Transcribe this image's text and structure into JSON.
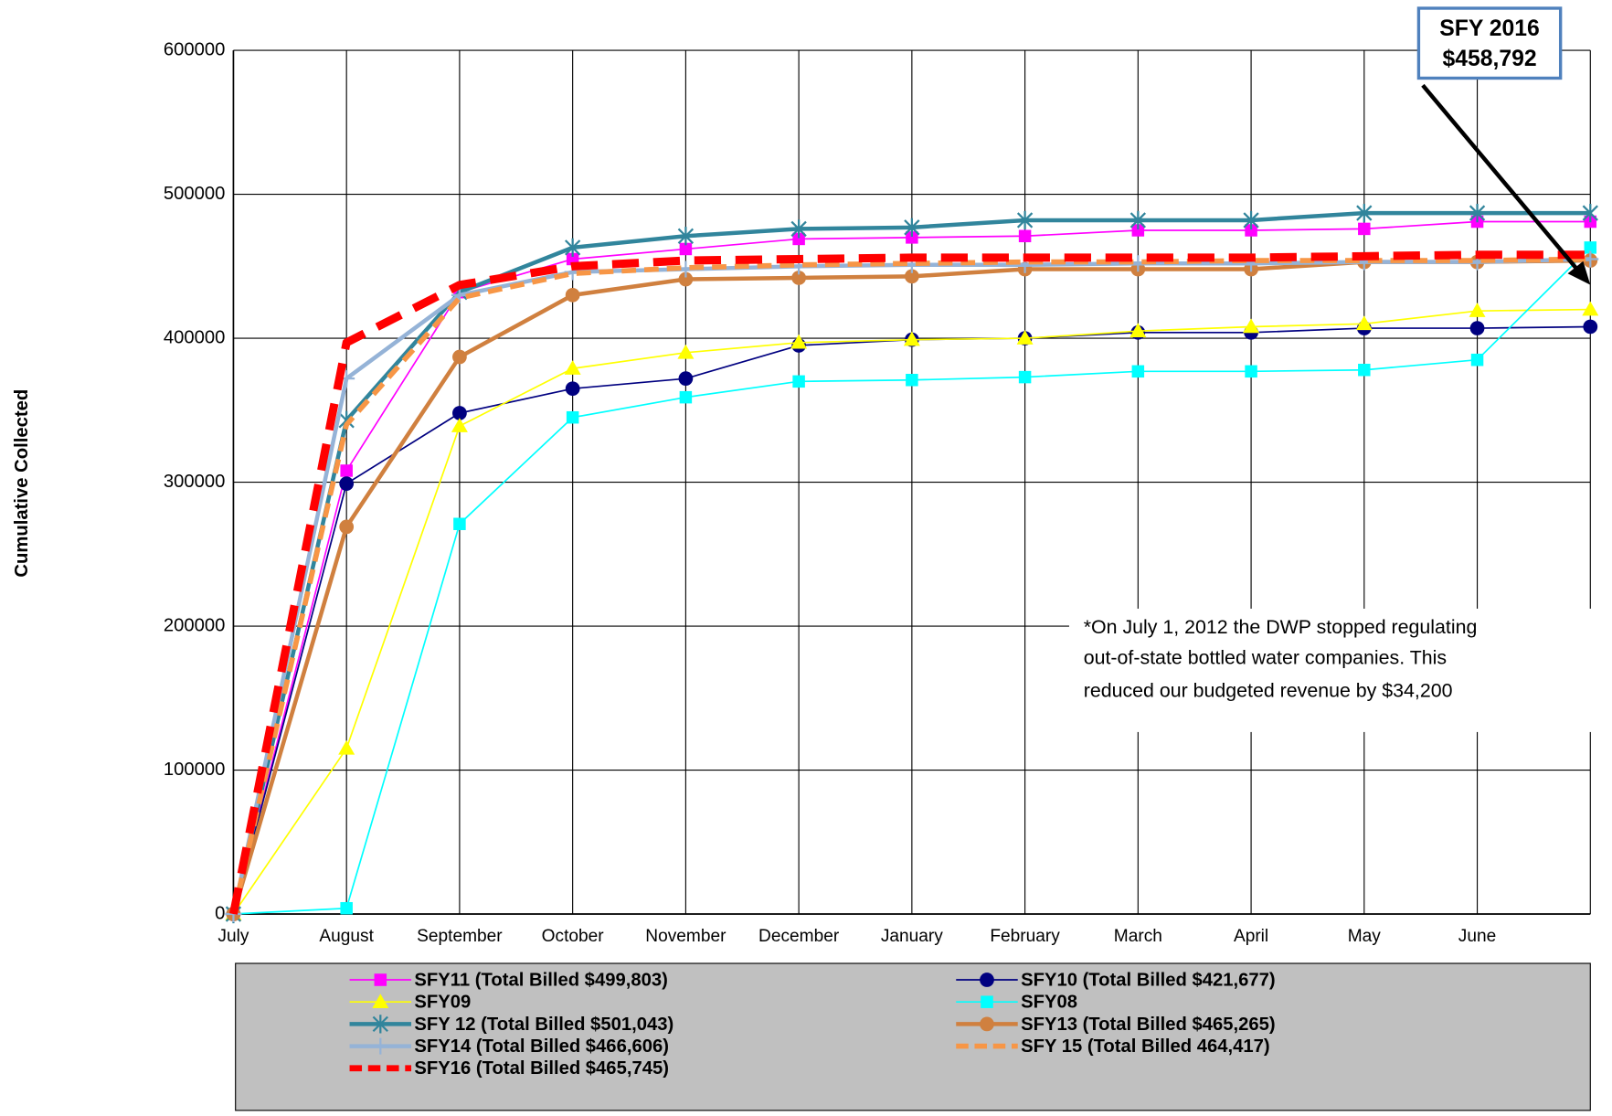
{
  "chart_data": {
    "type": "line",
    "y_label": "Cumulative Collected",
    "categories": [
      "July",
      "August",
      "September",
      "October",
      "November",
      "December",
      "January",
      "February",
      "March",
      "April",
      "May",
      "June",
      null
    ],
    "ylim": [
      0,
      600000
    ],
    "yticks": [
      0,
      100000,
      200000,
      300000,
      400000,
      500000,
      600000
    ],
    "grid": true,
    "annotation": [
      "SFY 2016",
      "$458,792"
    ],
    "note": [
      "*On July 1, 2012  the DWP stopped regulating",
      "out-of-state bottled water companies.  This",
      "reduced our budgeted revenue by $34,200"
    ],
    "series": [
      {
        "name": "SFY11 (Total Billed $499,803)",
        "color": "#ff00ff",
        "marker": "square",
        "width": 1.5,
        "dash": "",
        "values": [
          0,
          308000,
          432000,
          455000,
          462000,
          469000,
          470000,
          471000,
          475000,
          475000,
          476000,
          481000,
          481000
        ]
      },
      {
        "name": "SFY10 (Total Billed $421,677)",
        "color": "#000080",
        "marker": "circle",
        "width": 1.5,
        "dash": "",
        "values": [
          0,
          299000,
          348000,
          365000,
          372000,
          395000,
          399000,
          400000,
          404000,
          404000,
          407000,
          407000,
          408000
        ]
      },
      {
        "name": "SFY09",
        "color": "#ffff00",
        "marker": "triangle",
        "width": 1.5,
        "dash": "",
        "values": [
          0,
          115000,
          339000,
          379000,
          390000,
          397000,
          399000,
          400000,
          405000,
          408000,
          410000,
          419000,
          420000
        ]
      },
      {
        "name": "SFY08",
        "color": "#00ffff",
        "marker": "square",
        "width": 1.5,
        "dash": "",
        "values": [
          0,
          4000,
          271000,
          345000,
          359000,
          370000,
          371000,
          373000,
          377000,
          377000,
          378000,
          385000,
          463000
        ]
      },
      {
        "name": "SFY 12 (Total Billed $501,043)",
        "color": "#31859c",
        "marker": "star",
        "width": 4,
        "dash": "",
        "values": [
          0,
          343000,
          432000,
          463000,
          471000,
          476000,
          477000,
          482000,
          482000,
          482000,
          487000,
          487000,
          487000
        ]
      },
      {
        "name": "SFY13 (Total Billed $465,265)",
        "color": "#d0803f",
        "marker": "circle",
        "width": 4,
        "dash": "",
        "values": [
          0,
          269000,
          387000,
          430000,
          441000,
          442000,
          443000,
          448000,
          448000,
          448000,
          453000,
          453000,
          454000
        ]
      },
      {
        "name": "SFY14 (Total Billed $466,606)",
        "color": "#95b3d7",
        "marker": "plus",
        "width": 4,
        "dash": "",
        "values": [
          0,
          372000,
          430000,
          446000,
          448000,
          450000,
          451000,
          451000,
          452000,
          452000,
          453000,
          453000,
          455000
        ]
      },
      {
        "name": "SFY 15 (Total Billed 464,417)",
        "color": "#f79646",
        "marker": "none",
        "width": 5,
        "dash": "14 8",
        "values": [
          0,
          340000,
          428000,
          445000,
          449000,
          451000,
          452000,
          453000,
          453000,
          454000,
          454000,
          454000,
          455000
        ]
      },
      {
        "name": "SFY16 (Total Billed $465,745)",
        "color": "#ff0000",
        "marker": "none",
        "width": 8,
        "dash": "26 14",
        "values": [
          0,
          397000,
          437000,
          450000,
          454000,
          455000,
          456000,
          456000,
          456000,
          456000,
          457000,
          458000,
          458000
        ]
      }
    ]
  }
}
